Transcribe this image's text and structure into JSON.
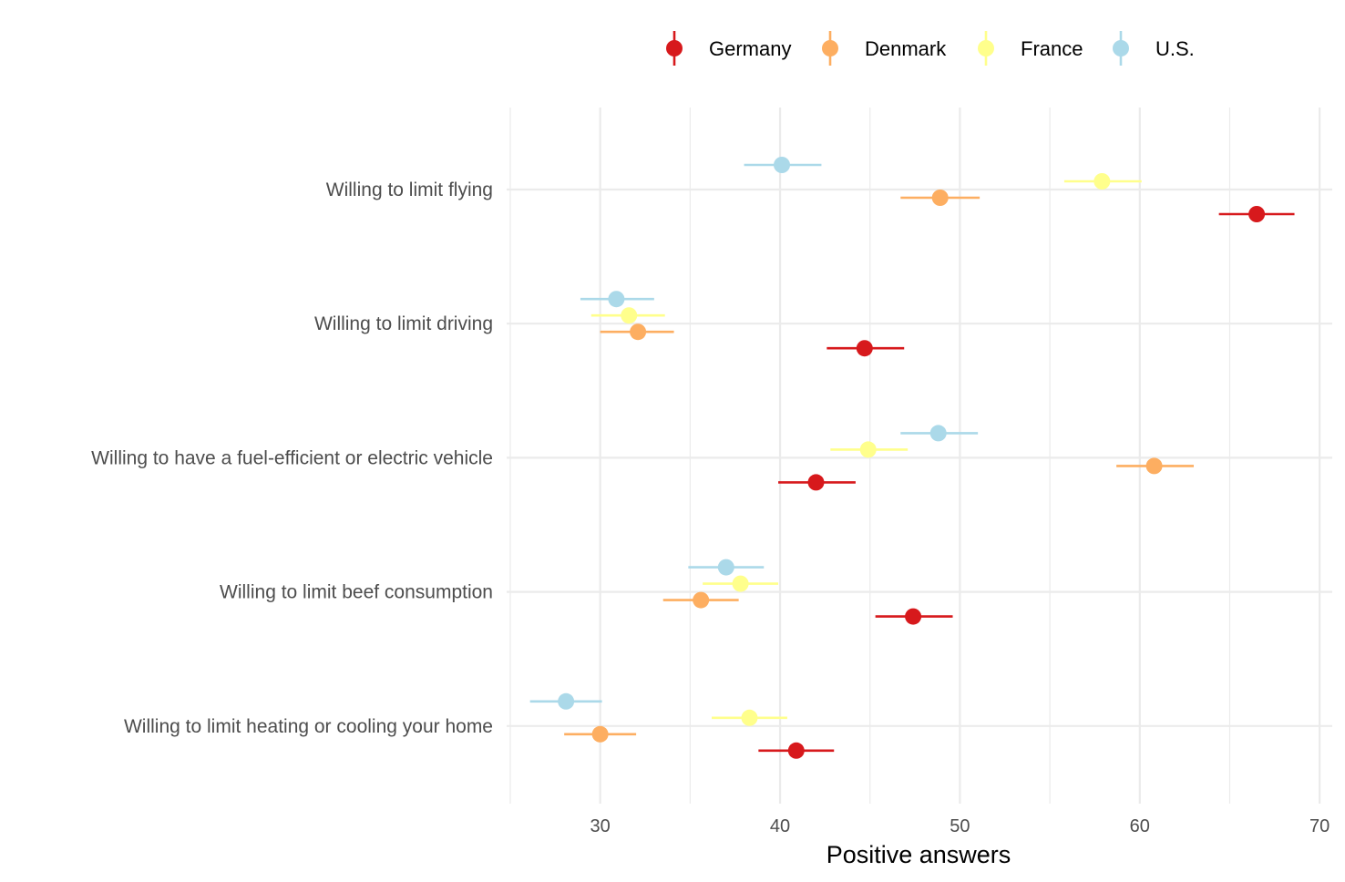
{
  "chart_data": {
    "type": "scatter",
    "subtype": "dot-with-error-bars",
    "title": "",
    "xlabel": "Positive answers",
    "ylabel": "",
    "xlim": [
      24.8,
      70.7
    ],
    "xticks": [
      30,
      40,
      50,
      60,
      70
    ],
    "grid": true,
    "legend_position": "top",
    "categories": [
      "Willing to limit flying",
      "Willing to limit driving",
      "Willing to have a fuel-efficient or electric vehicle",
      "Willing to limit beef consumption",
      "Willing to limit heating or cooling your home"
    ],
    "series": [
      {
        "name": "Germany",
        "color": "#d7191c",
        "values": [
          66.5,
          44.7,
          42.0,
          47.4,
          40.9
        ],
        "lower": [
          64.4,
          42.6,
          39.9,
          45.3,
          38.8
        ],
        "upper": [
          68.6,
          46.9,
          44.2,
          49.6,
          43.0
        ]
      },
      {
        "name": "Denmark",
        "color": "#fdae61",
        "values": [
          48.9,
          32.1,
          60.8,
          35.6,
          30.0
        ],
        "lower": [
          46.7,
          30.0,
          58.7,
          33.5,
          28.0
        ],
        "upper": [
          51.1,
          34.1,
          63.0,
          37.7,
          32.0
        ]
      },
      {
        "name": "France",
        "color": "#ffff8c",
        "values": [
          57.9,
          31.6,
          44.9,
          37.8,
          38.3
        ],
        "lower": [
          55.8,
          29.5,
          42.8,
          35.7,
          36.2
        ],
        "upper": [
          60.1,
          33.6,
          47.1,
          39.9,
          40.4
        ]
      },
      {
        "name": "U.S.",
        "color": "#abd9e9",
        "values": [
          40.1,
          30.9,
          48.8,
          37.0,
          28.1
        ],
        "lower": [
          38.0,
          28.9,
          46.7,
          34.9,
          26.1
        ],
        "upper": [
          42.3,
          33.0,
          51.0,
          39.1,
          30.1
        ]
      }
    ]
  }
}
